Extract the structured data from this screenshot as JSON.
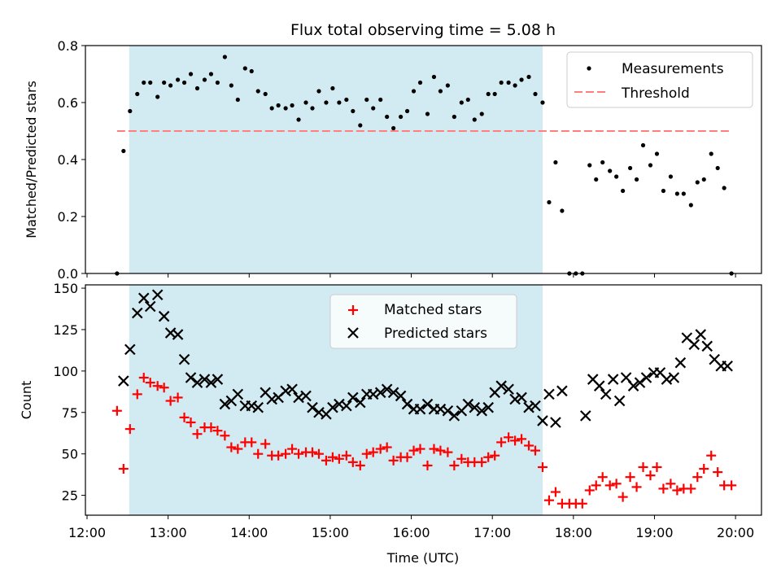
{
  "figure": {
    "title": "Flux total observing time = 5.08 h",
    "xlabel": "Time (UTC)",
    "xticks": [
      {
        "value": 12,
        "label": "12:00"
      },
      {
        "value": 13,
        "label": "13:00"
      },
      {
        "value": 14,
        "label": "14:00"
      },
      {
        "value": 15,
        "label": "15:00"
      },
      {
        "value": 16,
        "label": "16:00"
      },
      {
        "value": 17,
        "label": "17:00"
      },
      {
        "value": 18,
        "label": "18:00"
      },
      {
        "value": 19,
        "label": "19:00"
      },
      {
        "value": 20,
        "label": "20:00"
      }
    ],
    "xlim": [
      11.98,
      20.32
    ],
    "highlight_span": [
      12.52,
      17.62
    ],
    "colors": {
      "highlight": "#add8e6",
      "matched": "#ff0000",
      "predicted": "#000000",
      "threshold": "#ff7f7f",
      "measurement": "#000000"
    }
  },
  "chart_data": [
    {
      "type": "scatter",
      "ylabel": "Matched/Predicted stars",
      "ylim": [
        0,
        0.8
      ],
      "yticks": [
        "0.0",
        "0.2",
        "0.4",
        "0.6",
        "0.8"
      ],
      "legend_placement": "top-right",
      "series": [
        {
          "name": "Measurements",
          "x": [
            12.37,
            12.45,
            12.53,
            12.62,
            12.7,
            12.78,
            12.87,
            12.95,
            13.03,
            13.12,
            13.2,
            13.28,
            13.36,
            13.45,
            13.53,
            13.61,
            13.7,
            13.78,
            13.86,
            13.95,
            14.03,
            14.11,
            14.2,
            14.28,
            14.36,
            14.45,
            14.53,
            14.61,
            14.7,
            14.78,
            14.86,
            14.95,
            15.03,
            15.11,
            15.2,
            15.28,
            15.37,
            15.45,
            15.53,
            15.62,
            15.7,
            15.78,
            15.87,
            15.95,
            16.03,
            16.11,
            16.2,
            16.28,
            16.36,
            16.45,
            16.53,
            16.62,
            16.7,
            16.78,
            16.87,
            16.95,
            17.03,
            17.11,
            17.2,
            17.28,
            17.36,
            17.45,
            17.53,
            17.62,
            17.7,
            17.78,
            17.86,
            17.95,
            18.03,
            18.11,
            18.2,
            18.28,
            18.36,
            18.45,
            18.53,
            18.61,
            18.7,
            18.78,
            18.86,
            18.95,
            19.03,
            19.11,
            19.2,
            19.28,
            19.36,
            19.45,
            19.53,
            19.61,
            19.7,
            19.78,
            19.86,
            19.95
          ],
          "y": [
            0.0,
            0.43,
            0.57,
            0.63,
            0.67,
            0.67,
            0.62,
            0.67,
            0.66,
            0.68,
            0.67,
            0.7,
            0.65,
            0.68,
            0.7,
            0.67,
            0.76,
            0.66,
            0.61,
            0.72,
            0.71,
            0.64,
            0.63,
            0.58,
            0.59,
            0.58,
            0.59,
            0.54,
            0.6,
            0.58,
            0.64,
            0.6,
            0.65,
            0.6,
            0.61,
            0.57,
            0.52,
            0.61,
            0.58,
            0.61,
            0.55,
            0.51,
            0.55,
            0.57,
            0.64,
            0.67,
            0.56,
            0.69,
            0.64,
            0.66,
            0.55,
            0.6,
            0.61,
            0.54,
            0.56,
            0.63,
            0.63,
            0.67,
            0.67,
            0.66,
            0.68,
            0.69,
            0.63,
            0.6,
            0.25,
            0.39,
            0.22,
            0.0,
            0.0,
            0.0,
            0.38,
            0.33,
            0.39,
            0.36,
            0.34,
            0.29,
            0.37,
            0.33,
            0.45,
            0.38,
            0.42,
            0.29,
            0.34,
            0.28,
            0.28,
            0.24,
            0.32,
            0.33,
            0.42,
            0.37,
            0.3,
            0.0
          ]
        },
        {
          "name": "Threshold",
          "style": "dashed",
          "x": [
            12.37,
            19.95
          ],
          "y": [
            0.5,
            0.5
          ]
        }
      ]
    },
    {
      "type": "scatter",
      "ylabel": "Count",
      "ylim": [
        13,
        152
      ],
      "yticks": [
        "25",
        "50",
        "75",
        "100",
        "125",
        "150"
      ],
      "legend_placement": "top-center",
      "series": [
        {
          "name": "Matched stars",
          "marker": "plus",
          "x": [
            12.37,
            12.45,
            12.53,
            12.62,
            12.7,
            12.78,
            12.87,
            12.95,
            13.03,
            13.12,
            13.2,
            13.28,
            13.36,
            13.45,
            13.53,
            13.61,
            13.7,
            13.78,
            13.86,
            13.95,
            14.03,
            14.11,
            14.2,
            14.28,
            14.36,
            14.45,
            14.53,
            14.61,
            14.7,
            14.78,
            14.86,
            14.95,
            15.03,
            15.11,
            15.2,
            15.28,
            15.37,
            15.45,
            15.53,
            15.62,
            15.7,
            15.78,
            15.87,
            15.95,
            16.03,
            16.11,
            16.2,
            16.28,
            16.36,
            16.45,
            16.53,
            16.62,
            16.7,
            16.78,
            16.87,
            16.95,
            17.03,
            17.11,
            17.2,
            17.28,
            17.36,
            17.45,
            17.53,
            17.62,
            17.7,
            17.78,
            17.86,
            17.95,
            18.03,
            18.11,
            18.2,
            18.28,
            18.36,
            18.45,
            18.53,
            18.61,
            18.7,
            18.78,
            18.86,
            18.95,
            19.03,
            19.11,
            19.2,
            19.28,
            19.36,
            19.45,
            19.53,
            19.61,
            19.7,
            19.78,
            19.86,
            19.95
          ],
          "y": [
            76,
            41,
            65,
            86,
            96,
            93,
            91,
            90,
            82,
            84,
            72,
            69,
            62,
            66,
            66,
            64,
            61,
            54,
            53,
            57,
            57,
            50,
            56,
            49,
            49,
            50,
            53,
            50,
            51,
            51,
            50,
            46,
            48,
            47,
            49,
            45,
            43,
            50,
            51,
            53,
            54,
            46,
            48,
            48,
            52,
            53,
            43,
            53,
            52,
            51,
            43,
            47,
            45,
            45,
            45,
            48,
            49,
            57,
            60,
            58,
            59,
            55,
            52,
            42,
            22,
            27,
            20,
            20,
            20,
            20,
            28,
            31,
            36,
            31,
            32,
            24,
            36,
            30,
            42,
            37,
            42,
            29,
            32,
            28,
            29,
            29,
            36,
            41,
            49,
            39,
            31,
            31
          ]
        },
        {
          "name": "Predicted stars",
          "marker": "cross",
          "x": [
            12.45,
            12.53,
            12.62,
            12.7,
            12.78,
            12.87,
            12.95,
            13.03,
            13.12,
            13.2,
            13.28,
            13.36,
            13.45,
            13.53,
            13.61,
            13.7,
            13.78,
            13.86,
            13.95,
            14.03,
            14.11,
            14.2,
            14.28,
            14.36,
            14.45,
            14.53,
            14.61,
            14.7,
            14.78,
            14.86,
            14.95,
            15.03,
            15.11,
            15.2,
            15.28,
            15.37,
            15.45,
            15.53,
            15.62,
            15.7,
            15.78,
            15.87,
            15.95,
            16.03,
            16.11,
            16.2,
            16.28,
            16.36,
            16.45,
            16.53,
            16.62,
            16.7,
            16.78,
            16.87,
            16.95,
            17.03,
            17.11,
            17.2,
            17.28,
            17.36,
            17.45,
            17.53,
            17.62,
            17.7,
            17.78,
            17.86,
            18.15,
            18.24,
            18.32,
            18.4,
            18.49,
            18.57,
            18.65,
            18.74,
            18.82,
            18.9,
            18.99,
            19.07,
            19.15,
            19.24,
            19.32,
            19.4,
            19.49,
            19.57,
            19.65,
            19.74,
            19.82,
            19.9
          ],
          "y": [
            94,
            113,
            135,
            144,
            139,
            146,
            133,
            123,
            122,
            107,
            96,
            93,
            95,
            93,
            95,
            80,
            82,
            86,
            79,
            79,
            78,
            87,
            83,
            84,
            88,
            89,
            84,
            85,
            78,
            75,
            74,
            78,
            80,
            79,
            84,
            81,
            86,
            86,
            87,
            89,
            87,
            85,
            80,
            77,
            77,
            80,
            77,
            77,
            76,
            73,
            76,
            80,
            78,
            76,
            78,
            87,
            91,
            89,
            83,
            84,
            78,
            79,
            70,
            86,
            69,
            88,
            73,
            95,
            91,
            86,
            95,
            82,
            96,
            91,
            93,
            96,
            99,
            99,
            95,
            96,
            105,
            120,
            116,
            122,
            115,
            107,
            103,
            103
          ]
        }
      ]
    }
  ]
}
